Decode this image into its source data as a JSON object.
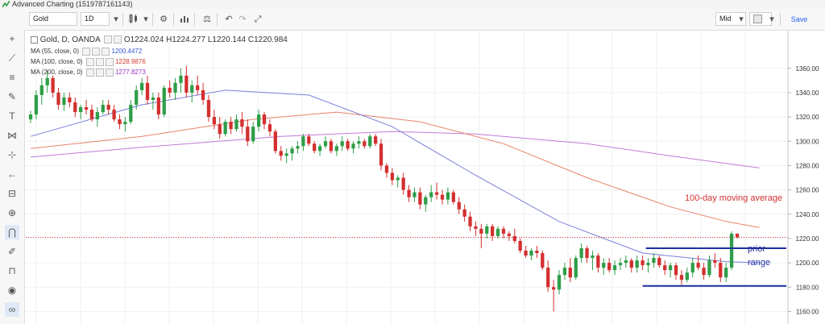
{
  "window": {
    "title": "Advanced Charting (1519787161143)"
  },
  "toolbar": {
    "symbol": "Gold",
    "interval": "1D",
    "price_type": "Mid",
    "save_label": "Save",
    "icons": [
      "plus-icon",
      "candles-icon",
      "indicators-icon",
      "settings-icon",
      "bar-chart-icon",
      "compare-icon",
      "undo-icon",
      "redo-icon",
      "fullscreen-icon",
      "color-icon"
    ]
  },
  "leftbar": {
    "icons": [
      "crosshair-icon",
      "trendline-icon",
      "fib-icon",
      "brush-icon",
      "text-icon",
      "pattern-icon",
      "measure-icon",
      "back-arrow-icon",
      "ruler-icon",
      "zoom-in-icon",
      "magnet-icon",
      "pencil-icon",
      "lock-icon",
      "eye-icon",
      "link-icon",
      "layers-icon"
    ]
  },
  "legend": {
    "main": {
      "label": "Gold, D, OANDA",
      "o_label": "O",
      "o": "1224.024",
      "h_label": "H",
      "h": "1224.277",
      "l_label": "L",
      "l": "1220.144",
      "c_label": "C",
      "c": "1220.984"
    },
    "ma55": {
      "label": "MA (55, close, 0)",
      "value": "1200.4472",
      "color": "#3a57d6"
    },
    "ma100": {
      "label": "MA (100, close, 0)",
      "value": "1228.9876",
      "color": "#d13a2a"
    },
    "ma200": {
      "label": "MA (200, close, 0)",
      "value": "1277.8273",
      "color": "#9a31c7"
    }
  },
  "colors": {
    "up": "#2e9e48",
    "down": "#d32f2f",
    "ma55": "#7b7fd9",
    "ma100": "#e8826a",
    "ma200": "#c27ad8",
    "range": "#1e2fa0",
    "annotation_text": "#d32f2f",
    "range_text": "#1e2fa0"
  },
  "chart_data": {
    "type": "candlestick",
    "price_axis": {
      "ylim": [
        1151,
        1391
      ],
      "ticks": [
        1360,
        1340,
        1320,
        1300,
        1280,
        1260,
        1240,
        1220,
        1200,
        1180,
        1160
      ]
    },
    "last_price": 1220.984,
    "last_price_label": "1220.984",
    "annotations": [
      {
        "text": "100-day moving average",
        "color": "#d32f2f"
      },
      {
        "text": "prior",
        "color": "#1e2fa0"
      },
      {
        "text": "range",
        "color": "#1e2fa0"
      }
    ],
    "prior_range": {
      "high": 1212,
      "low": 1181,
      "start_index": 110,
      "end_index": 132
    },
    "candles": [
      [
        1318,
        1325,
        1315,
        1322
      ],
      [
        1322,
        1342,
        1318,
        1338
      ],
      [
        1338,
        1352,
        1330,
        1346
      ],
      [
        1346,
        1358,
        1340,
        1352
      ],
      [
        1352,
        1354,
        1336,
        1340
      ],
      [
        1340,
        1344,
        1326,
        1330
      ],
      [
        1330,
        1340,
        1325,
        1336
      ],
      [
        1336,
        1340,
        1328,
        1332
      ],
      [
        1332,
        1336,
        1320,
        1324
      ],
      [
        1324,
        1330,
        1318,
        1328
      ],
      [
        1328,
        1334,
        1322,
        1326
      ],
      [
        1326,
        1330,
        1316,
        1318
      ],
      [
        1318,
        1328,
        1312,
        1324
      ],
      [
        1324,
        1334,
        1322,
        1330
      ],
      [
        1330,
        1334,
        1322,
        1326
      ],
      [
        1326,
        1330,
        1316,
        1318
      ],
      [
        1318,
        1322,
        1310,
        1314
      ],
      [
        1314,
        1320,
        1308,
        1316
      ],
      [
        1316,
        1334,
        1314,
        1330
      ],
      [
        1330,
        1346,
        1326,
        1342
      ],
      [
        1342,
        1352,
        1338,
        1348
      ],
      [
        1348,
        1354,
        1330,
        1334
      ],
      [
        1334,
        1340,
        1326,
        1336
      ],
      [
        1336,
        1340,
        1318,
        1322
      ],
      [
        1322,
        1346,
        1320,
        1344
      ],
      [
        1344,
        1350,
        1336,
        1340
      ],
      [
        1340,
        1352,
        1334,
        1348
      ],
      [
        1348,
        1360,
        1340,
        1354
      ],
      [
        1354,
        1362,
        1336,
        1340
      ],
      [
        1340,
        1350,
        1332,
        1346
      ],
      [
        1346,
        1354,
        1338,
        1342
      ],
      [
        1342,
        1348,
        1330,
        1334
      ],
      [
        1334,
        1338,
        1316,
        1320
      ],
      [
        1320,
        1326,
        1310,
        1314
      ],
      [
        1314,
        1320,
        1302,
        1306
      ],
      [
        1306,
        1318,
        1304,
        1316
      ],
      [
        1316,
        1320,
        1306,
        1310
      ],
      [
        1310,
        1322,
        1308,
        1318
      ],
      [
        1318,
        1324,
        1306,
        1312
      ],
      [
        1312,
        1318,
        1296,
        1300
      ],
      [
        1300,
        1316,
        1298,
        1312
      ],
      [
        1312,
        1326,
        1308,
        1322
      ],
      [
        1322,
        1324,
        1310,
        1314
      ],
      [
        1314,
        1318,
        1304,
        1308
      ],
      [
        1308,
        1310,
        1290,
        1292
      ],
      [
        1292,
        1296,
        1284,
        1288
      ],
      [
        1288,
        1294,
        1282,
        1290
      ],
      [
        1290,
        1296,
        1284,
        1294
      ],
      [
        1294,
        1300,
        1290,
        1296
      ],
      [
        1296,
        1306,
        1292,
        1304
      ],
      [
        1304,
        1306,
        1296,
        1298
      ],
      [
        1298,
        1300,
        1290,
        1292
      ],
      [
        1292,
        1298,
        1288,
        1296
      ],
      [
        1296,
        1304,
        1294,
        1300
      ],
      [
        1300,
        1302,
        1290,
        1292
      ],
      [
        1292,
        1298,
        1288,
        1296
      ],
      [
        1296,
        1304,
        1292,
        1300
      ],
      [
        1300,
        1302,
        1292,
        1294
      ],
      [
        1294,
        1300,
        1290,
        1298
      ],
      [
        1298,
        1304,
        1294,
        1300
      ],
      [
        1300,
        1302,
        1294,
        1296
      ],
      [
        1296,
        1306,
        1294,
        1304
      ],
      [
        1304,
        1306,
        1296,
        1298
      ],
      [
        1298,
        1302,
        1276,
        1280
      ],
      [
        1280,
        1282,
        1270,
        1274
      ],
      [
        1274,
        1278,
        1264,
        1268
      ],
      [
        1268,
        1272,
        1262,
        1270
      ],
      [
        1270,
        1274,
        1256,
        1260
      ],
      [
        1260,
        1264,
        1250,
        1254
      ],
      [
        1254,
        1262,
        1250,
        1258
      ],
      [
        1258,
        1262,
        1244,
        1248
      ],
      [
        1248,
        1256,
        1242,
        1254
      ],
      [
        1254,
        1264,
        1250,
        1258
      ],
      [
        1258,
        1266,
        1252,
        1256
      ],
      [
        1256,
        1260,
        1248,
        1252
      ],
      [
        1252,
        1262,
        1248,
        1258
      ],
      [
        1258,
        1260,
        1248,
        1250
      ],
      [
        1250,
        1254,
        1240,
        1244
      ],
      [
        1244,
        1248,
        1234,
        1238
      ],
      [
        1238,
        1242,
        1226,
        1230
      ],
      [
        1230,
        1234,
        1222,
        1228
      ],
      [
        1228,
        1232,
        1212,
        1224
      ],
      [
        1224,
        1232,
        1220,
        1230
      ],
      [
        1230,
        1232,
        1218,
        1222
      ],
      [
        1222,
        1230,
        1220,
        1228
      ],
      [
        1228,
        1230,
        1220,
        1224
      ],
      [
        1224,
        1226,
        1218,
        1222
      ],
      [
        1222,
        1228,
        1216,
        1218
      ],
      [
        1218,
        1220,
        1208,
        1210
      ],
      [
        1210,
        1214,
        1204,
        1206
      ],
      [
        1206,
        1212,
        1202,
        1210
      ],
      [
        1210,
        1214,
        1204,
        1208
      ],
      [
        1208,
        1210,
        1194,
        1196
      ],
      [
        1196,
        1202,
        1176,
        1180
      ],
      [
        1180,
        1186,
        1160,
        1178
      ],
      [
        1178,
        1194,
        1174,
        1190
      ],
      [
        1190,
        1200,
        1186,
        1196
      ],
      [
        1196,
        1204,
        1184,
        1188
      ],
      [
        1188,
        1206,
        1186,
        1204
      ],
      [
        1204,
        1216,
        1200,
        1212
      ],
      [
        1212,
        1214,
        1200,
        1204
      ],
      [
        1204,
        1210,
        1194,
        1206
      ],
      [
        1206,
        1208,
        1192,
        1196
      ],
      [
        1196,
        1204,
        1190,
        1200
      ],
      [
        1200,
        1204,
        1192,
        1194
      ],
      [
        1194,
        1202,
        1190,
        1198
      ],
      [
        1198,
        1204,
        1194,
        1200
      ],
      [
        1200,
        1206,
        1196,
        1202
      ],
      [
        1202,
        1204,
        1192,
        1196
      ],
      [
        1196,
        1206,
        1192,
        1202
      ],
      [
        1202,
        1206,
        1194,
        1198
      ],
      [
        1198,
        1204,
        1192,
        1200
      ],
      [
        1200,
        1208,
        1196,
        1204
      ],
      [
        1204,
        1206,
        1196,
        1198
      ],
      [
        1198,
        1202,
        1190,
        1194
      ],
      [
        1194,
        1200,
        1188,
        1198
      ],
      [
        1198,
        1200,
        1186,
        1190
      ],
      [
        1190,
        1194,
        1182,
        1186
      ],
      [
        1186,
        1196,
        1184,
        1192
      ],
      [
        1192,
        1204,
        1188,
        1200
      ],
      [
        1200,
        1206,
        1194,
        1196
      ],
      [
        1196,
        1200,
        1186,
        1190
      ],
      [
        1190,
        1206,
        1188,
        1202
      ],
      [
        1202,
        1208,
        1196,
        1200
      ],
      [
        1200,
        1204,
        1184,
        1188
      ],
      [
        1188,
        1200,
        1184,
        1196
      ],
      [
        1196,
        1226,
        1194,
        1224
      ],
      [
        1224,
        1224.277,
        1220.144,
        1220.984
      ]
    ],
    "ma55": [
      [
        0,
        1304
      ],
      [
        20,
        1330
      ],
      [
        35,
        1342
      ],
      [
        50,
        1338
      ],
      [
        65,
        1312
      ],
      [
        80,
        1272
      ],
      [
        95,
        1234
      ],
      [
        110,
        1208
      ],
      [
        125,
        1201
      ],
      [
        131,
        1200
      ]
    ],
    "ma100": [
      [
        0,
        1294
      ],
      [
        20,
        1304
      ],
      [
        40,
        1318
      ],
      [
        55,
        1324
      ],
      [
        70,
        1316
      ],
      [
        85,
        1298
      ],
      [
        100,
        1270
      ],
      [
        115,
        1246
      ],
      [
        125,
        1234
      ],
      [
        131,
        1229
      ]
    ],
    "ma200": [
      [
        0,
        1287
      ],
      [
        20,
        1295
      ],
      [
        45,
        1304
      ],
      [
        65,
        1308
      ],
      [
        80,
        1306
      ],
      [
        100,
        1298
      ],
      [
        115,
        1288
      ],
      [
        131,
        1278
      ]
    ]
  }
}
